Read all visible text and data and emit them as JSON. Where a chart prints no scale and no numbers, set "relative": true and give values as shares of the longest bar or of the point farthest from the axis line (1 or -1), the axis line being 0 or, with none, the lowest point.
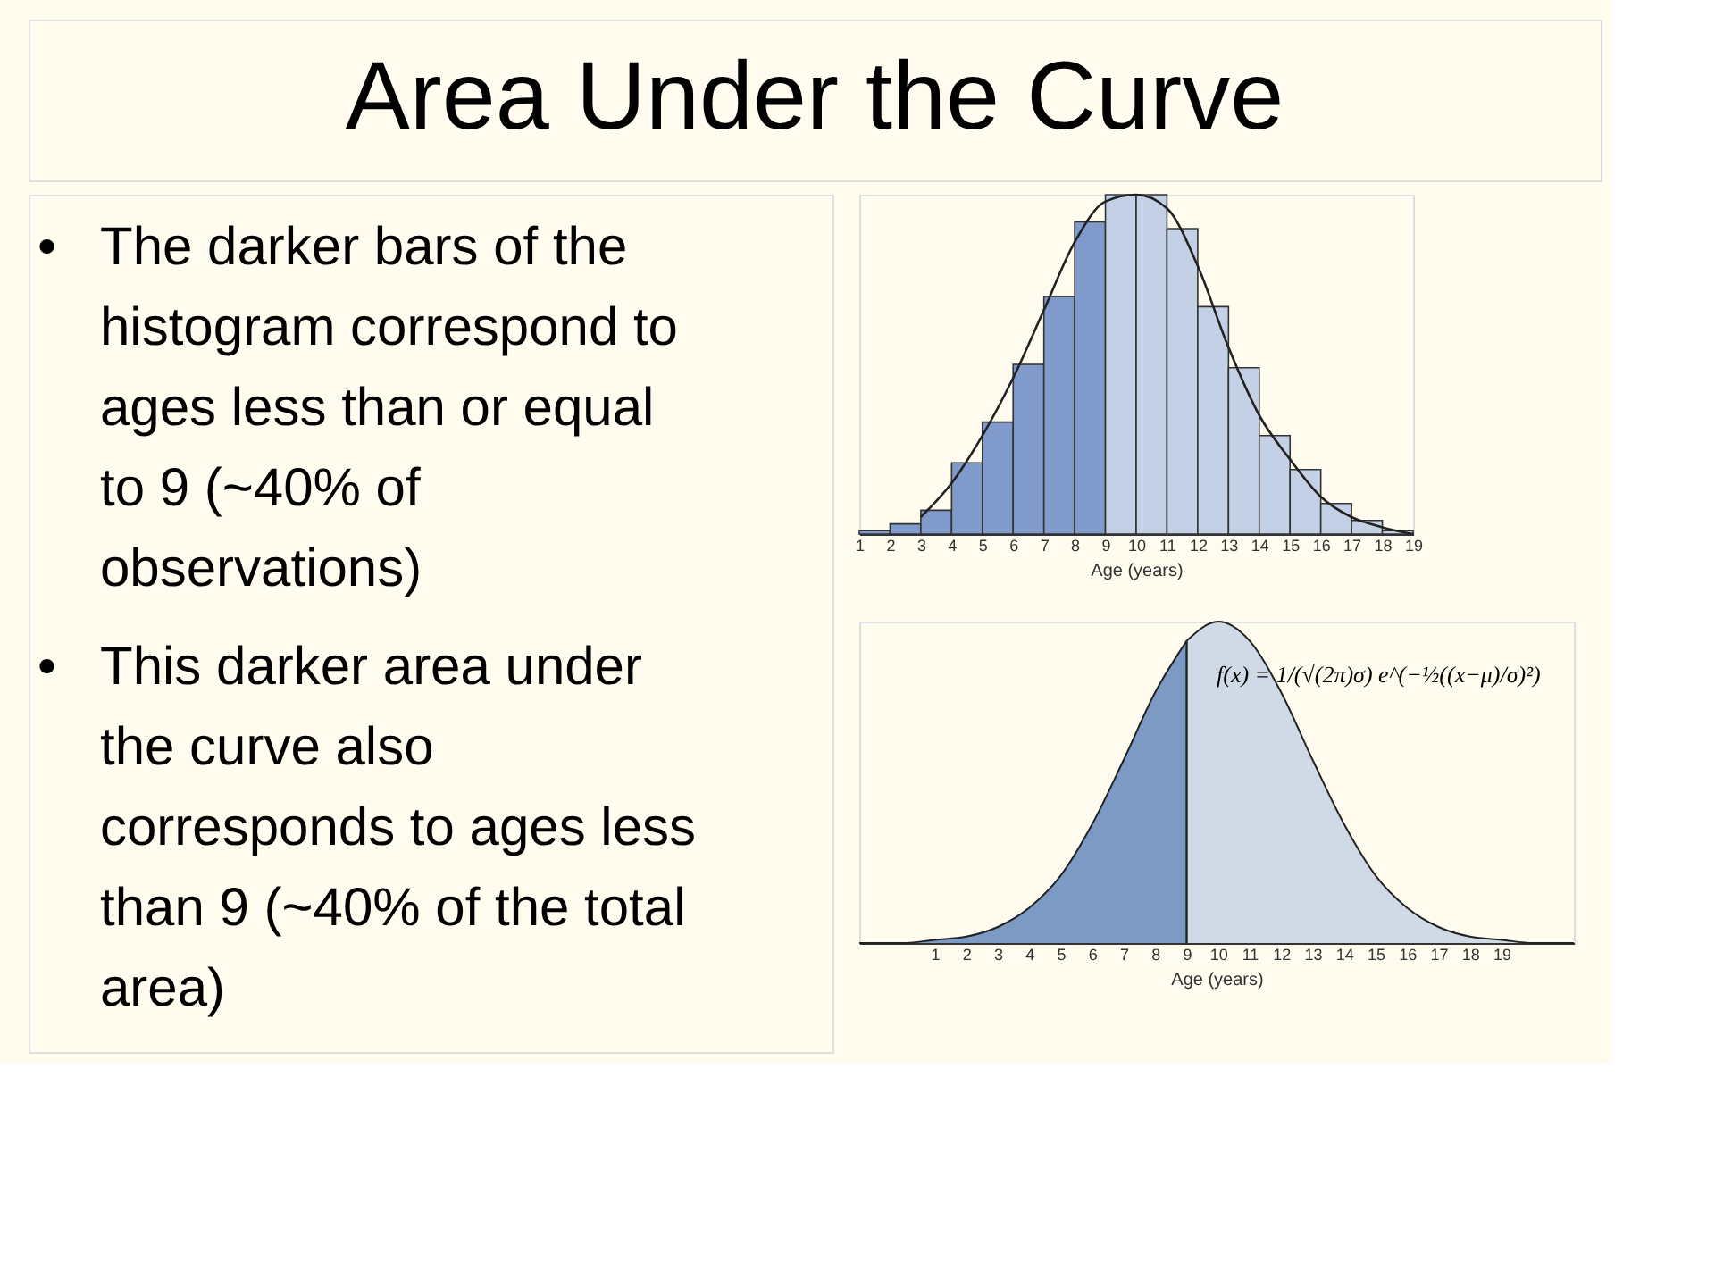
{
  "chart_data": [
    {
      "type": "histogram",
      "title": "Area Under the Curve",
      "xlabel": "Age (years)",
      "relative": true,
      "annotations": [
        "• The darker bars of the histogram correspond to ages less than or equal to 9 (~40% of observations)",
        "• This darker area under the curve also corresponds to ages less than 9 (~40% of the total area)"
      ],
      "bins": [
        1,
        2,
        3,
        4,
        5,
        6,
        7,
        8,
        9,
        10,
        11,
        12,
        13,
        14,
        15,
        16,
        17,
        18,
        19
      ],
      "xlim": [
        1,
        19
      ],
      "xticks": [
        1,
        2,
        3,
        4,
        5,
        6,
        7,
        8,
        9,
        10,
        11,
        12,
        13,
        14,
        15,
        16,
        17,
        18,
        19
      ],
      "series": [
        {
          "values": [
            0.01,
            0.03,
            0.07,
            0.21,
            0.33,
            0.5,
            0.7,
            0.92,
            1,
            1,
            0.9,
            0.67,
            0.49,
            0.29,
            0.19,
            0.09,
            0.04,
            0.01
          ],
          "colors": [
            "#7f9acb",
            "#7f9acb",
            "#7f9acb",
            "#7f9acb",
            "#7f9acb",
            "#7f9acb",
            "#7f9acb",
            "#7f9acb",
            "#c3d0e6",
            "#c3d0e6",
            "#c3d0e6",
            "#c3d0e6",
            "#c3d0e6",
            "#c3d0e6",
            "#c3d0e6",
            "#c3d0e6",
            "#c3d0e6",
            "#c3d0e6"
          ]
        },
        {
          "type": "line",
          "color": "#222222",
          "x": [
            3,
            4,
            5,
            6,
            7,
            8,
            9,
            10,
            11,
            12,
            13,
            14,
            15,
            16,
            17,
            18,
            19
          ],
          "values": [
            0.05,
            0.15,
            0.29,
            0.46,
            0.66,
            0.86,
            0.98,
            1,
            0.96,
            0.79,
            0.55,
            0.35,
            0.22,
            0.11,
            0.05,
            0.02,
            0
          ]
        }
      ]
    },
    {
      "type": "area",
      "xlabel": "Age (years)",
      "relative": true,
      "annotations": [
        "f(x) = 1/(√(2π)σ) e^(−½((x−μ)/σ)²)"
      ],
      "xlim": [
        -1.4,
        21.3
      ],
      "ref_lines": [
        {
          "axis": "x",
          "value": 9,
          "color": "#222222"
        }
      ],
      "xticks": [
        1,
        2,
        3,
        4,
        5,
        6,
        7,
        8,
        9,
        10,
        11,
        12,
        13,
        14,
        15,
        16,
        17,
        18,
        19
      ],
      "series": [
        {
          "color": "#4470b0",
          "x": [
            -1.4,
            -1,
            0,
            1,
            2,
            3,
            4,
            5,
            6,
            7,
            8,
            9
          ],
          "values": [
            0,
            0,
            0,
            0.01,
            0.02,
            0.05,
            0.11,
            0.21,
            0.37,
            0.57,
            0.78,
            0.94
          ]
        },
        {
          "color": "#bccbe3",
          "x": [
            9,
            10,
            11,
            12,
            13,
            14,
            15,
            16,
            17,
            18,
            19,
            20,
            21,
            21.3
          ],
          "values": [
            0.94,
            1,
            0.94,
            0.78,
            0.57,
            0.37,
            0.21,
            0.11,
            0.05,
            0.02,
            0.01,
            0,
            0,
            0
          ]
        }
      ]
    }
  ]
}
